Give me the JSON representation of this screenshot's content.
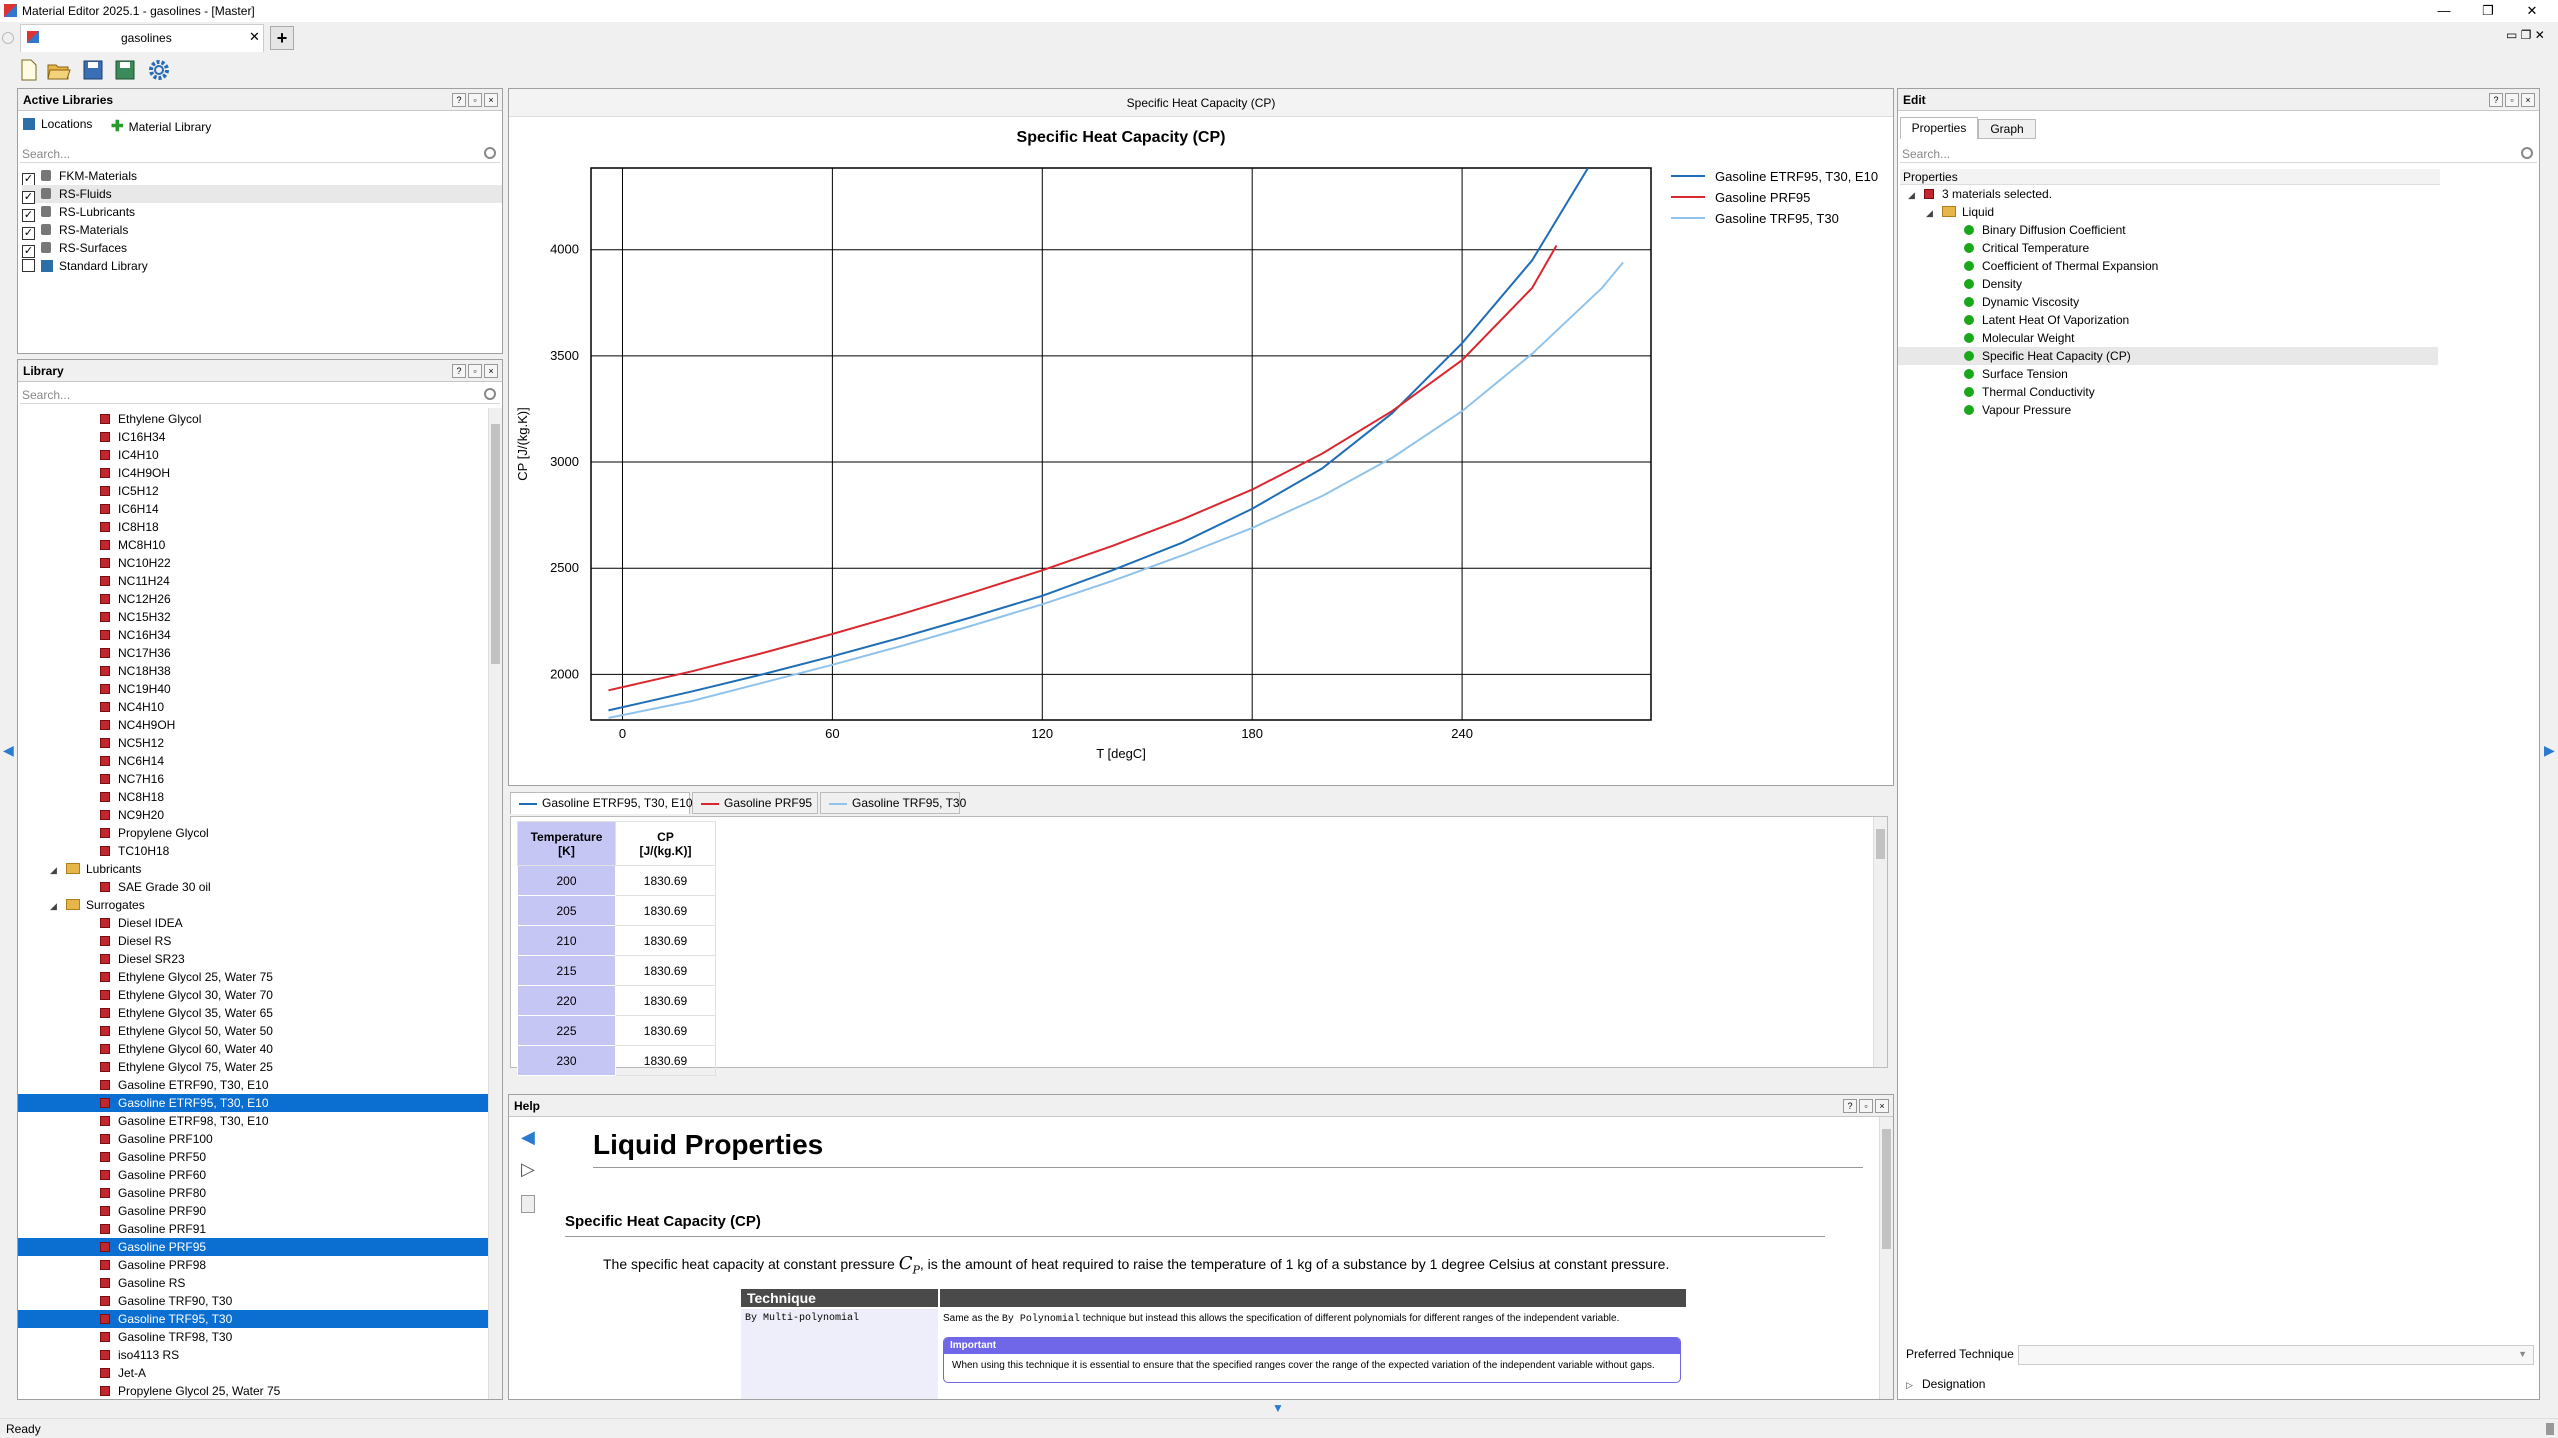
{
  "window": {
    "title": "Material Editor 2025.1 - gasolines - [Master]",
    "minimize": "—",
    "restore": "❐",
    "close": "✕"
  },
  "doc_tab": {
    "label": "gasolines",
    "close": "✕",
    "new": "+"
  },
  "active_libraries": {
    "title": "Active Libraries",
    "locations_label": "Locations",
    "material_library_label": "Material Library",
    "search_placeholder": "Search...",
    "items": [
      {
        "label": "FKM-Materials",
        "checked": true,
        "locked": true
      },
      {
        "label": "RS-Fluids",
        "checked": true,
        "locked": true
      },
      {
        "label": "RS-Lubricants",
        "checked": true,
        "locked": true
      },
      {
        "label": "RS-Materials",
        "checked": true,
        "locked": true
      },
      {
        "label": "RS-Surfaces",
        "checked": true,
        "locked": true
      },
      {
        "label": "Standard Library",
        "checked": false,
        "locked": false
      }
    ]
  },
  "library": {
    "title": "Library",
    "search_placeholder": "Search...",
    "items": [
      {
        "label": "Ethylene Glycol",
        "level": 2,
        "type": "mat"
      },
      {
        "label": "IC16H34",
        "level": 2,
        "type": "mat"
      },
      {
        "label": "IC4H10",
        "level": 2,
        "type": "mat"
      },
      {
        "label": "IC4H9OH",
        "level": 2,
        "type": "mat"
      },
      {
        "label": "IC5H12",
        "level": 2,
        "type": "mat"
      },
      {
        "label": "IC6H14",
        "level": 2,
        "type": "mat"
      },
      {
        "label": "IC8H18",
        "level": 2,
        "type": "mat"
      },
      {
        "label": "MC8H10",
        "level": 2,
        "type": "mat"
      },
      {
        "label": "NC10H22",
        "level": 2,
        "type": "mat"
      },
      {
        "label": "NC11H24",
        "level": 2,
        "type": "mat"
      },
      {
        "label": "NC12H26",
        "level": 2,
        "type": "mat"
      },
      {
        "label": "NC15H32",
        "level": 2,
        "type": "mat"
      },
      {
        "label": "NC16H34",
        "level": 2,
        "type": "mat"
      },
      {
        "label": "NC17H36",
        "level": 2,
        "type": "mat"
      },
      {
        "label": "NC18H38",
        "level": 2,
        "type": "mat"
      },
      {
        "label": "NC19H40",
        "level": 2,
        "type": "mat"
      },
      {
        "label": "NC4H10",
        "level": 2,
        "type": "mat"
      },
      {
        "label": "NC4H9OH",
        "level": 2,
        "type": "mat"
      },
      {
        "label": "NC5H12",
        "level": 2,
        "type": "mat"
      },
      {
        "label": "NC6H14",
        "level": 2,
        "type": "mat"
      },
      {
        "label": "NC7H16",
        "level": 2,
        "type": "mat"
      },
      {
        "label": "NC8H18",
        "level": 2,
        "type": "mat"
      },
      {
        "label": "NC9H20",
        "level": 2,
        "type": "mat"
      },
      {
        "label": "Propylene Glycol",
        "level": 2,
        "type": "mat"
      },
      {
        "label": "TC10H18",
        "level": 2,
        "type": "mat"
      },
      {
        "label": "Lubricants",
        "level": 1,
        "type": "folder"
      },
      {
        "label": "SAE Grade 30 oil",
        "level": 2,
        "type": "mat"
      },
      {
        "label": "Surrogates",
        "level": 1,
        "type": "folder"
      },
      {
        "label": "Diesel IDEA",
        "level": 2,
        "type": "mat"
      },
      {
        "label": "Diesel RS",
        "level": 2,
        "type": "mat"
      },
      {
        "label": "Diesel SR23",
        "level": 2,
        "type": "mat"
      },
      {
        "label": "Ethylene Glycol 25, Water 75",
        "level": 2,
        "type": "mat"
      },
      {
        "label": "Ethylene Glycol 30, Water 70",
        "level": 2,
        "type": "mat"
      },
      {
        "label": "Ethylene Glycol 35, Water 65",
        "level": 2,
        "type": "mat"
      },
      {
        "label": "Ethylene Glycol 50, Water 50",
        "level": 2,
        "type": "mat"
      },
      {
        "label": "Ethylene Glycol 60, Water 40",
        "level": 2,
        "type": "mat"
      },
      {
        "label": "Ethylene Glycol 75, Water 25",
        "level": 2,
        "type": "mat"
      },
      {
        "label": "Gasoline ETRF90, T30, E10",
        "level": 2,
        "type": "mat"
      },
      {
        "label": "Gasoline ETRF95, T30, E10",
        "level": 2,
        "type": "mat",
        "selected": true
      },
      {
        "label": "Gasoline ETRF98, T30, E10",
        "level": 2,
        "type": "mat"
      },
      {
        "label": "Gasoline PRF100",
        "level": 2,
        "type": "mat"
      },
      {
        "label": "Gasoline PRF50",
        "level": 2,
        "type": "mat"
      },
      {
        "label": "Gasoline PRF60",
        "level": 2,
        "type": "mat"
      },
      {
        "label": "Gasoline PRF80",
        "level": 2,
        "type": "mat"
      },
      {
        "label": "Gasoline PRF90",
        "level": 2,
        "type": "mat"
      },
      {
        "label": "Gasoline PRF91",
        "level": 2,
        "type": "mat"
      },
      {
        "label": "Gasoline PRF95",
        "level": 2,
        "type": "mat",
        "selected": true
      },
      {
        "label": "Gasoline PRF98",
        "level": 2,
        "type": "mat"
      },
      {
        "label": "Gasoline RS",
        "level": 2,
        "type": "mat"
      },
      {
        "label": "Gasoline TRF90, T30",
        "level": 2,
        "type": "mat"
      },
      {
        "label": "Gasoline TRF95, T30",
        "level": 2,
        "type": "mat",
        "selected": true
      },
      {
        "label": "Gasoline TRF98, T30",
        "level": 2,
        "type": "mat"
      },
      {
        "label": "iso4113 RS",
        "level": 2,
        "type": "mat"
      },
      {
        "label": "Jet-A",
        "level": 2,
        "type": "mat"
      },
      {
        "label": "Propylene Glycol 25, Water 75",
        "level": 2,
        "type": "mat"
      }
    ]
  },
  "chart_panel": {
    "header": "Specific Heat Capacity (CP)"
  },
  "chart_data": {
    "type": "line",
    "title": "Specific Heat Capacity (CP)",
    "xlabel": "T [degC]",
    "ylabel": "CP [J/(kg.K)]",
    "xlim": [
      -9,
      294
    ],
    "ylim": [
      1785,
      4385
    ],
    "xticks": [
      0,
      60,
      120,
      180,
      240
    ],
    "yticks": [
      2000,
      2500,
      3000,
      3500,
      4000
    ],
    "grid": true,
    "legend_position": "right",
    "series": [
      {
        "name": "Gasoline ETRF95, T30, E10",
        "color": "#1f6db5",
        "x": [
          -4,
          20,
          40,
          60,
          80,
          100,
          120,
          140,
          160,
          180,
          200,
          220,
          240,
          260,
          276
        ],
        "y": [
          1830,
          1920,
          2000,
          2085,
          2175,
          2270,
          2370,
          2490,
          2620,
          2780,
          2970,
          3230,
          3560,
          3950,
          4385
        ]
      },
      {
        "name": "Gasoline PRF95",
        "color": "#d9282f",
        "x": [
          -4,
          20,
          40,
          60,
          80,
          100,
          120,
          140,
          160,
          180,
          200,
          220,
          240,
          260,
          267
        ],
        "y": [
          1925,
          2015,
          2100,
          2190,
          2285,
          2385,
          2490,
          2605,
          2730,
          2870,
          3040,
          3240,
          3480,
          3820,
          4020
        ]
      },
      {
        "name": "Gasoline TRF95, T30",
        "color": "#8fc3ec",
        "x": [
          -4,
          20,
          40,
          60,
          80,
          100,
          120,
          140,
          160,
          180,
          200,
          220,
          240,
          260,
          280,
          286
        ],
        "y": [
          1795,
          1875,
          1960,
          2045,
          2135,
          2230,
          2330,
          2440,
          2560,
          2690,
          2840,
          3020,
          3240,
          3510,
          3820,
          3940
        ]
      }
    ]
  },
  "data_tabs": [
    {
      "label": "Gasoline ETRF95, T30, E10",
      "color": "#1f6db5",
      "active": true
    },
    {
      "label": "Gasoline PRF95",
      "color": "#d9282f",
      "active": false
    },
    {
      "label": "Gasoline TRF95, T30",
      "color": "#8fc3ec",
      "active": false
    }
  ],
  "data_table": {
    "col1": {
      "name": "Temperature",
      "unit": "[K]"
    },
    "col2": {
      "name": "CP",
      "unit": "[J/(kg.K)]"
    },
    "rows": [
      [
        "200",
        "1830.69"
      ],
      [
        "205",
        "1830.69"
      ],
      [
        "210",
        "1830.69"
      ],
      [
        "215",
        "1830.69"
      ],
      [
        "220",
        "1830.69"
      ],
      [
        "225",
        "1830.69"
      ],
      [
        "230",
        "1830.69"
      ]
    ]
  },
  "help": {
    "title": "Help",
    "heading": "Liquid Properties",
    "subheading": "Specific Heat Capacity (CP)",
    "para_before": "The specific heat capacity at constant pressure ",
    "symbol": "C",
    "symbol_sub": "P",
    "para_after": ", is the amount of heat required to raise the temperature of 1 kg of a substance by 1 degree Celsius at constant pressure.",
    "table_header": "Technique",
    "technique_name": "By Multi-polynomial",
    "desc_before": "Same as the ",
    "desc_code": "By Polynomial",
    "desc_after": " technique but instead this allows the specification of different polynomials for different ranges of the independent variable.",
    "important_title": "Important",
    "important_text": "When using this technique it is essential to ensure that the specified ranges cover the range of the expected variation of the independent variable without gaps."
  },
  "edit": {
    "title": "Edit",
    "tabs": [
      "Properties",
      "Graph"
    ],
    "search_placeholder": "Search...",
    "column_header": "Properties",
    "root": "3 materials selected.",
    "group": "Liquid",
    "properties": [
      "Binary Diffusion Coefficient",
      "Critical Temperature",
      "Coefficient of Thermal Expansion",
      "Density",
      "Dynamic Viscosity",
      "Latent Heat Of Vaporization",
      "Molecular Weight",
      "Specific Heat Capacity (CP)",
      "Surface Tension",
      "Thermal Conductivity",
      "Vapour Pressure"
    ],
    "highlighted": "Specific Heat Capacity (CP)",
    "preferred_technique_label": "Preferred Technique",
    "designation_label": "Designation"
  },
  "status": {
    "text": "Ready"
  }
}
